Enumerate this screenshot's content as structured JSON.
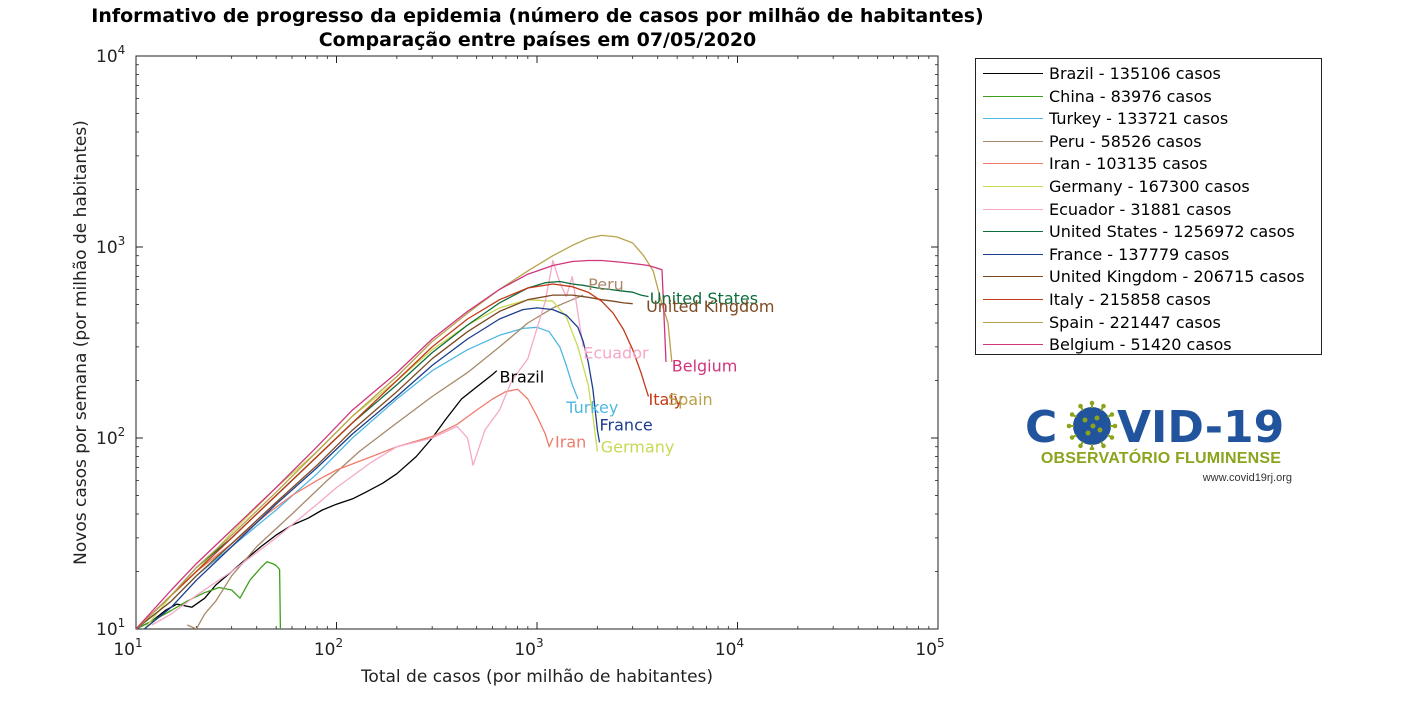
{
  "title_line1": "Informativo de progresso da epidemia (número de casos por milhão de habitantes)",
  "title_line2": "Comparação entre países em 07/05/2020",
  "chart_data": {
    "type": "line",
    "title": "Informativo de progresso da epidemia (número de casos por milhão de habitantes) / Comparação entre países em 07/05/2020",
    "xlabel": "Total de casos (por milhão de habitantes)",
    "ylabel": "Novos casos por semana (por milhão de habitantes)",
    "xscale": "log",
    "yscale": "log",
    "xlim": [
      10,
      100000
    ],
    "ylim": [
      10,
      10000
    ],
    "xticks": [
      {
        "value": 10,
        "base": "10",
        "exp": "1"
      },
      {
        "value": 100,
        "base": "10",
        "exp": "2"
      },
      {
        "value": 1000,
        "base": "10",
        "exp": "3"
      },
      {
        "value": 10000,
        "base": "10",
        "exp": "4"
      },
      {
        "value": 100000,
        "base": "10",
        "exp": "5"
      }
    ],
    "yticks": [
      {
        "value": 10,
        "base": "10",
        "exp": "1"
      },
      {
        "value": 100,
        "base": "10",
        "exp": "2"
      },
      {
        "value": 1000,
        "base": "10",
        "exp": "3"
      },
      {
        "value": 10000,
        "base": "10",
        "exp": "4"
      }
    ],
    "grid": false,
    "legend_position": "outside-right",
    "series": [
      {
        "name": "Brazil",
        "legend": "Brazil - 135106 casos",
        "color": "#000000",
        "label": "Brazil",
        "label_x": 650,
        "label_y": 210,
        "x": [
          10,
          12,
          14,
          16,
          19,
          22,
          25,
          30,
          35,
          42,
          50,
          60,
          72,
          85,
          100,
          120,
          140,
          170,
          200,
          250,
          300,
          350,
          420,
          500,
          550,
          600,
          630
        ],
        "y": [
          10,
          11,
          12.5,
          13.5,
          13,
          14.5,
          17,
          20,
          23,
          27,
          31,
          35,
          38,
          42,
          45,
          48,
          52,
          58,
          65,
          80,
          100,
          125,
          160,
          185,
          200,
          215,
          225
        ]
      },
      {
        "name": "China",
        "legend": "China - 83976 casos",
        "color": "#3f9f1c",
        "label": "",
        "label_x": null,
        "label_y": null,
        "x": [
          10,
          12,
          15,
          18,
          22,
          26,
          30,
          33,
          37,
          42,
          45,
          48,
          50,
          52,
          52.5
        ],
        "y": [
          10,
          11,
          12.5,
          14,
          15.5,
          16.5,
          16,
          14.5,
          18,
          21,
          22.5,
          22,
          21.5,
          20.5,
          10
        ]
      },
      {
        "name": "Turkey",
        "legend": "Turkey - 133721 casos",
        "color": "#4fb8e0",
        "label": "Turkey",
        "label_x": 1400,
        "label_y": 145,
        "x": [
          10,
          15,
          20,
          30,
          50,
          80,
          120,
          200,
          300,
          450,
          650,
          850,
          1000,
          1150,
          1300,
          1400,
          1500,
          1600
        ],
        "y": [
          10,
          14,
          19,
          27,
          42,
          65,
          100,
          160,
          225,
          290,
          345,
          375,
          380,
          360,
          300,
          240,
          190,
          160
        ]
      },
      {
        "name": "Peru",
        "legend": "Peru - 58526 casos",
        "color": "#a8896a",
        "label": "Peru",
        "label_x": 1800,
        "label_y": 640,
        "x": [
          18,
          20,
          22,
          25,
          30,
          40,
          60,
          90,
          130,
          200,
          300,
          450,
          650,
          900,
          1200,
          1500,
          1700
        ],
        "y": [
          10.5,
          10,
          12,
          14,
          19,
          27,
          40,
          60,
          85,
          120,
          165,
          220,
          300,
          400,
          480,
          530,
          560
        ]
      },
      {
        "name": "Iran",
        "legend": "Iran - 103135 casos",
        "color": "#f07c6c",
        "label": "Iran",
        "label_x": 1230,
        "label_y": 96,
        "x": [
          10,
          15,
          20,
          30,
          45,
          60,
          80,
          100,
          150,
          200,
          300,
          400,
          500,
          600,
          700,
          800,
          900,
          1000,
          1100,
          1150,
          1200
        ],
        "y": [
          10,
          15,
          20,
          28,
          40,
          50,
          60,
          68,
          80,
          90,
          102,
          118,
          140,
          160,
          175,
          180,
          160,
          130,
          105,
          90,
          100
        ]
      },
      {
        "name": "Germany",
        "legend": "Germany - 167300 casos",
        "color": "#c9d955",
        "label": "Germany",
        "label_x": 2080,
        "label_y": 90,
        "x": [
          11,
          15,
          20,
          30,
          50,
          80,
          120,
          200,
          300,
          450,
          650,
          900,
          1200,
          1400,
          1600,
          1800,
          1900,
          2000
        ],
        "y": [
          10,
          15,
          20,
          32,
          55,
          85,
          130,
          200,
          290,
          390,
          480,
          530,
          520,
          430,
          300,
          190,
          130,
          85
        ]
      },
      {
        "name": "Ecuador",
        "legend": "Ecuador - 31881 casos",
        "color": "#f5a8c8",
        "label": "Ecuador",
        "label_x": 1700,
        "label_y": 280,
        "x": [
          12,
          15,
          20,
          30,
          50,
          80,
          100,
          150,
          200,
          300,
          400,
          450,
          480,
          550,
          650,
          750,
          900,
          1100,
          1200,
          1300,
          1400,
          1500,
          1600,
          1700
        ],
        "y": [
          10.5,
          12,
          15,
          20,
          30,
          45,
          55,
          75,
          90,
          100,
          115,
          100,
          72,
          110,
          140,
          200,
          260,
          520,
          850,
          650,
          550,
          700,
          450,
          300
        ]
      },
      {
        "name": "United States",
        "legend": "United States - 1256972 casos",
        "color": "#0f6d3c",
        "label": "United States",
        "label_x": 3650,
        "label_y": 540,
        "x": [
          10,
          15,
          20,
          30,
          50,
          80,
          120,
          200,
          300,
          450,
          650,
          900,
          1100,
          1300,
          1500,
          1700,
          2000,
          2300,
          2600,
          3000,
          3300,
          3600
        ],
        "y": [
          10,
          15,
          21,
          30,
          50,
          80,
          120,
          190,
          280,
          390,
          510,
          610,
          650,
          660,
          640,
          630,
          610,
          600,
          590,
          580,
          560,
          550
        ]
      },
      {
        "name": "France",
        "legend": "France - 137779 casos",
        "color": "#1b3d8f",
        "label": "France",
        "label_x": 2050,
        "label_y": 118,
        "x": [
          11,
          15,
          20,
          30,
          50,
          80,
          120,
          200,
          300,
          450,
          650,
          850,
          1000,
          1200,
          1400,
          1600,
          1700,
          1800,
          1900,
          2000,
          2050
        ],
        "y": [
          10,
          13,
          18,
          27,
          45,
          70,
          105,
          165,
          240,
          330,
          420,
          470,
          480,
          470,
          440,
          380,
          320,
          250,
          180,
          110,
          95
        ]
      },
      {
        "name": "United Kingdom",
        "legend": "United Kingdom - 206715 casos",
        "color": "#7d4a22",
        "label": "United Kingdom",
        "label_x": 3500,
        "label_y": 490,
        "x": [
          10,
          15,
          20,
          30,
          50,
          80,
          120,
          200,
          300,
          450,
          650,
          900,
          1200,
          1500,
          1800,
          2100,
          2400,
          2700,
          3000
        ],
        "y": [
          10,
          14,
          19,
          28,
          46,
          72,
          110,
          175,
          260,
          360,
          460,
          530,
          560,
          560,
          545,
          530,
          520,
          510,
          505
        ]
      },
      {
        "name": "Italy",
        "legend": "Italy - 215858 casos",
        "color": "#c23a18",
        "label": "Italy",
        "label_x": 3600,
        "label_y": 160,
        "x": [
          10,
          15,
          20,
          30,
          50,
          80,
          120,
          200,
          300,
          450,
          650,
          900,
          1200,
          1500,
          1800,
          2100,
          2400,
          2700,
          3000,
          3300,
          3500,
          3600
        ],
        "y": [
          10,
          15,
          20,
          30,
          50,
          80,
          120,
          200,
          300,
          420,
          530,
          610,
          640,
          620,
          580,
          520,
          450,
          370,
          290,
          220,
          180,
          165
        ]
      },
      {
        "name": "Spain",
        "legend": "Spain - 221447 casos",
        "color": "#b8a34c",
        "label": "Spain",
        "label_x": 4500,
        "label_y": 160,
        "x": [
          10,
          15,
          20,
          30,
          50,
          80,
          120,
          200,
          300,
          450,
          650,
          900,
          1200,
          1500,
          1800,
          2100,
          2500,
          3000,
          3400,
          3800,
          4200,
          4500,
          4700
        ],
        "y": [
          10,
          15,
          21,
          31,
          52,
          85,
          130,
          210,
          320,
          450,
          600,
          750,
          900,
          1020,
          1110,
          1150,
          1130,
          1050,
          900,
          750,
          500,
          400,
          250
        ]
      },
      {
        "name": "Belgium",
        "legend": "Belgium - 51420 casos",
        "color": "#d0357c",
        "label": "Belgium",
        "label_x": 4700,
        "label_y": 240,
        "x": [
          10,
          15,
          20,
          30,
          50,
          80,
          120,
          200,
          300,
          450,
          650,
          900,
          1200,
          1500,
          1800,
          2100,
          2400,
          2700,
          3000,
          3300,
          3600,
          3900,
          4200,
          4400
        ],
        "y": [
          10,
          16,
          22,
          33,
          55,
          90,
          140,
          220,
          330,
          460,
          600,
          720,
          800,
          840,
          850,
          850,
          840,
          830,
          820,
          810,
          800,
          780,
          760,
          250
        ]
      }
    ]
  },
  "logo": {
    "main": "COVID-19",
    "main_parts": [
      "C",
      "VID-19"
    ],
    "subtitle": "OBSERVATÓRIO FLUMINENSE",
    "url": "www.covid19rj.org",
    "blue": "#21549c",
    "green": "#8aa51d"
  }
}
